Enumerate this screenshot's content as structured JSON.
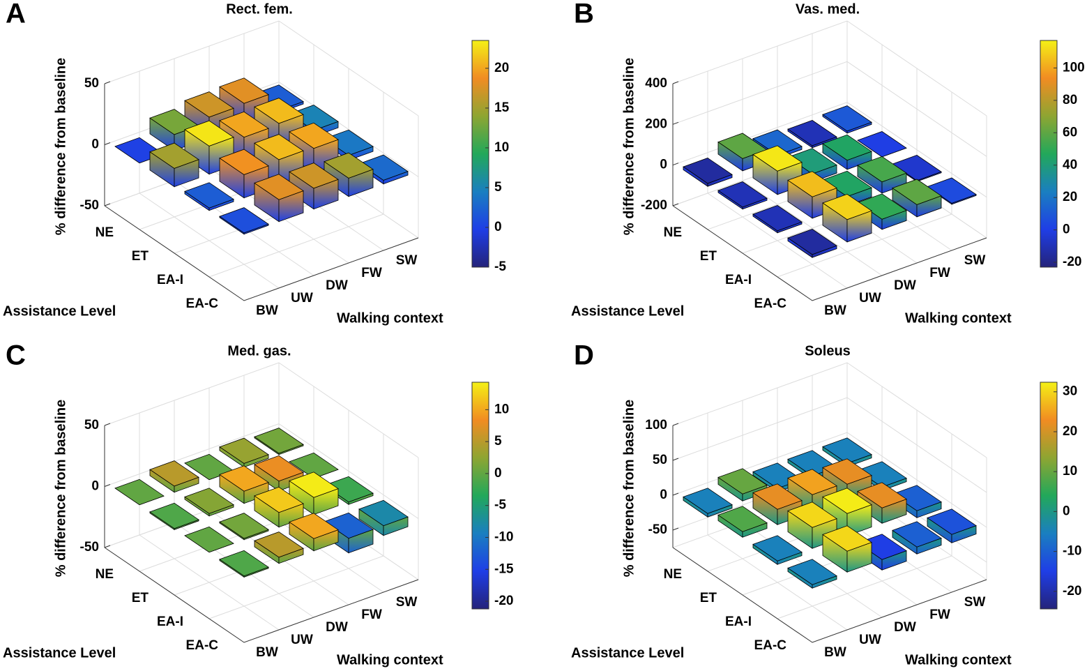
{
  "chart_data": [
    {
      "type": "bar3d",
      "panel": "A",
      "title": "Rect. fem.",
      "zlabel": "% difference from baseline",
      "xlabel": "Assistance Level",
      "ylabel": "Walking context",
      "x_categories": [
        "NE",
        "ET",
        "EA-I",
        "EA-C"
      ],
      "y_categories": [
        "BW",
        "UW",
        "DW",
        "FW",
        "SW"
      ],
      "values": [
        [
          0,
          13,
          17,
          18,
          2
        ],
        [
          15,
          23,
          20,
          21,
          5
        ],
        [
          2,
          19,
          21,
          20,
          4
        ],
        [
          1,
          18,
          17,
          15,
          3
        ]
      ],
      "zlim": [
        -50,
        50
      ],
      "zticks": [
        -50,
        0,
        50
      ],
      "grid": true,
      "colorbar": {
        "lim": [
          -5,
          23.5
        ],
        "ticks": [
          -5,
          0,
          5,
          10,
          15,
          20
        ]
      },
      "colormap": [
        "#24237a",
        "#1f3ee6",
        "#1a7fc0",
        "#22a85a",
        "#8ea532",
        "#f18c22",
        "#f4f016"
      ]
    },
    {
      "type": "bar3d",
      "panel": "B",
      "title": "Vas. med.",
      "zlabel": "% difference from baseline",
      "xlabel": "Assistance Level",
      "ylabel": "Walking context",
      "x_categories": [
        "NE",
        "ET",
        "EA-I",
        "EA-C"
      ],
      "y_categories": [
        "BW",
        "UW",
        "DW",
        "FW",
        "SW"
      ],
      "values": [
        [
          -15,
          60,
          15,
          -10,
          10
        ],
        [
          -10,
          115,
          40,
          45,
          0
        ],
        [
          -10,
          105,
          45,
          55,
          -5
        ],
        [
          -15,
          110,
          50,
          60,
          5
        ]
      ],
      "zlim": [
        -200,
        400
      ],
      "zticks": [
        -200,
        0,
        200,
        400
      ],
      "grid": true,
      "colorbar": {
        "lim": [
          -23,
          117
        ],
        "ticks": [
          -20,
          0,
          20,
          40,
          60,
          80,
          100
        ]
      },
      "colormap": [
        "#24237a",
        "#1f3ee6",
        "#1a7fc0",
        "#22a85a",
        "#8ea532",
        "#f18c22",
        "#f4f016"
      ]
    },
    {
      "type": "bar3d",
      "panel": "C",
      "title": "Med. gas.",
      "zlabel": "% difference from baseline",
      "xlabel": "Assistance Level",
      "ylabel": "Walking context",
      "x_categories": [
        "NE",
        "ET",
        "EA-I",
        "EA-C"
      ],
      "y_categories": [
        "BW",
        "UW",
        "DW",
        "FW",
        "SW"
      ],
      "values": [
        [
          0,
          5,
          0,
          3,
          1
        ],
        [
          -1,
          2,
          10,
          8,
          0
        ],
        [
          0,
          1,
          12,
          14,
          -2
        ],
        [
          -1,
          5,
          10,
          -12,
          -8
        ]
      ],
      "zlim": [
        -50,
        50
      ],
      "zticks": [
        -50,
        0,
        50
      ],
      "grid": true,
      "colorbar": {
        "lim": [
          -21.2,
          14.3
        ],
        "ticks": [
          -20,
          -15,
          -10,
          -5,
          0,
          5,
          10
        ]
      },
      "colormap": [
        "#24237a",
        "#1f3ee6",
        "#1a7fc0",
        "#22a85a",
        "#8ea532",
        "#f18c22",
        "#f4f016"
      ]
    },
    {
      "type": "bar3d",
      "panel": "D",
      "title": "Soleus",
      "zlabel": "% difference from baseline",
      "xlabel": "Assistance Level",
      "ylabel": "Walking context",
      "x_categories": [
        "NE",
        "ET",
        "EA-I",
        "EA-C"
      ],
      "y_categories": [
        "BW",
        "UW",
        "DW",
        "FW",
        "SW"
      ],
      "values": [
        [
          -5,
          10,
          -5,
          -5,
          -5
        ],
        [
          8,
          22,
          25,
          22,
          -5
        ],
        [
          -5,
          30,
          32,
          22,
          -10
        ],
        [
          -5,
          30,
          -15,
          -10,
          -12
        ]
      ],
      "zlim": [
        -75,
        100
      ],
      "zticks": [
        -50,
        0,
        50,
        100
      ],
      "grid": true,
      "colorbar": {
        "lim": [
          -24.4,
          32.4
        ],
        "ticks": [
          -20,
          -10,
          0,
          10,
          20,
          30
        ]
      },
      "colormap": [
        "#24237a",
        "#1f3ee6",
        "#1a7fc0",
        "#22a85a",
        "#8ea532",
        "#f18c22",
        "#f4f016"
      ]
    }
  ]
}
